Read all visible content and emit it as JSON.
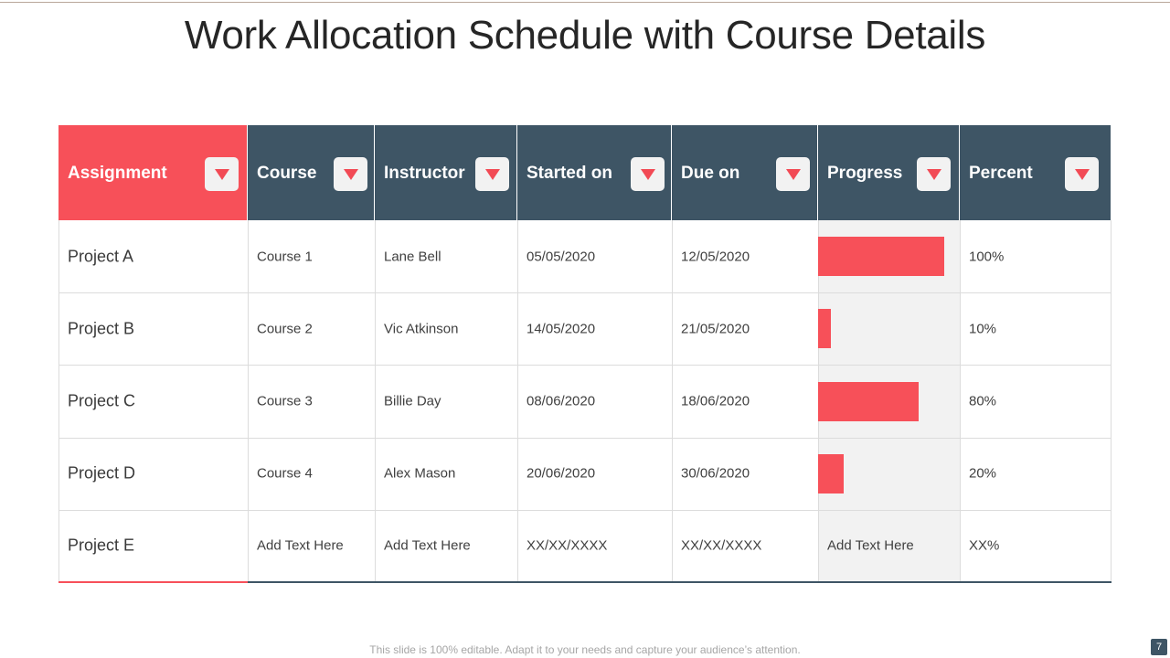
{
  "slide": {
    "title": "Work Allocation Schedule with Course Details",
    "footer": "This slide is 100% editable. Adapt it to your needs and capture your audience’s attention.",
    "page_number": "7"
  },
  "colors": {
    "accent": "#f75059",
    "header": "#3e5565",
    "progress_column_bg": "#f2f2f2"
  },
  "table": {
    "headers": [
      "Assignment",
      "Course",
      "Instructor",
      "Started on",
      "Due on",
      "Progress",
      "Percent"
    ],
    "header_icon": "chevron-down-icon",
    "rows": [
      {
        "assignment": "Project A",
        "course": "Course 1",
        "instructor": "Lane Bell",
        "started": "05/05/2020",
        "due": "12/05/2020",
        "progress": 1.0,
        "progress_text": "",
        "percent": "100%"
      },
      {
        "assignment": "Project B",
        "course": "Course 2",
        "instructor": "Vic Atkinson",
        "started": "14/05/2020",
        "due": "21/05/2020",
        "progress": 0.1,
        "progress_text": "",
        "percent": "10%"
      },
      {
        "assignment": "Project C",
        "course": "Course 3",
        "instructor": "Billie Day",
        "started": "08/06/2020",
        "due": "18/06/2020",
        "progress": 0.8,
        "progress_text": "",
        "percent": "80%"
      },
      {
        "assignment": "Project D",
        "course": "Course 4",
        "instructor": "Alex Mason",
        "started": "20/06/2020",
        "due": "30/06/2020",
        "progress": 0.2,
        "progress_text": "",
        "percent": "20%"
      },
      {
        "assignment": "Project E",
        "course": "Add Text Here",
        "instructor": "Add Text Here",
        "started": "XX/XX/XXXX",
        "due": "XX/XX/XXXX",
        "progress": null,
        "progress_text": "Add Text Here",
        "percent": "XX%"
      }
    ]
  }
}
